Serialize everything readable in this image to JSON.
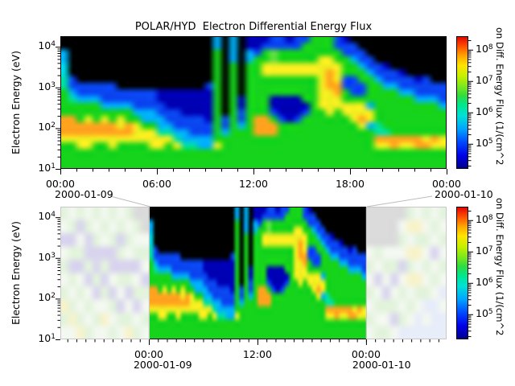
{
  "title": "POLAR/HYD  Electron Differential Energy Flux",
  "y_axis": {
    "label": "Electron Energy (eV)",
    "base": "10",
    "tick_exponents": [
      1,
      2,
      3,
      4
    ]
  },
  "colorbar": {
    "title_visible": "on Diff. Energy Flux (1/(cm^2",
    "base": "10",
    "tick_exponents": [
      5,
      6,
      7,
      8
    ]
  },
  "top_panel": {
    "x_ticks": [
      {
        "label": "00:00",
        "hour": 0
      },
      {
        "label": "06:00",
        "hour": 6
      },
      {
        "label": "12:00",
        "hour": 12
      },
      {
        "label": "18:00",
        "hour": 18
      },
      {
        "label": "00:00",
        "hour": 24
      }
    ],
    "dates": [
      {
        "label": "2000-01-09",
        "hour": 0
      },
      {
        "label": "2000-01-10",
        "hour": 24
      }
    ]
  },
  "bottom_panel": {
    "x_ticks": [
      {
        "label": "00:00",
        "hour": 0
      },
      {
        "label": "12:00",
        "hour": 12
      },
      {
        "label": "00:00",
        "hour": 24
      }
    ],
    "dates": [
      {
        "label": "2000-01-09",
        "hour": 0
      },
      {
        "label": "2000-01-10",
        "hour": 24
      }
    ],
    "range_hours": [
      -9.78,
      32.9
    ],
    "highlight_hours": [
      0,
      24
    ]
  },
  "chart_data": {
    "type": "heatmap",
    "title": "POLAR/HYD  Electron Differential Energy Flux",
    "ylabel": "Electron Energy (eV)",
    "y_scale": "log",
    "y_tick_labels": [
      "10^1",
      "10^2",
      "10^3",
      "10^4"
    ],
    "y_log_range": [
      1.0,
      4.26
    ],
    "colorbar_tick_labels": [
      "10^5",
      "10^6",
      "10^7",
      "10^8"
    ],
    "colorbar_log_range": [
      4.2,
      8.43
    ],
    "colorbar_label_visible": "on Diff. Energy Flux (1/(cm^2",
    "panels": [
      {
        "id": "top",
        "x_tick_labels": [
          "00:00",
          "06:00",
          "12:00",
          "18:00",
          "00:00"
        ],
        "x_tick_hours": [
          0,
          6,
          12,
          18,
          24
        ],
        "x_minor_step_hours": 1,
        "date_labels": [
          "2000-01-09",
          "2000-01-10"
        ],
        "range_hours": [
          0,
          24
        ]
      },
      {
        "id": "bottom-context",
        "x_tick_labels": [
          "00:00",
          "12:00",
          "00:00"
        ],
        "x_tick_hours": [
          0,
          12,
          24
        ],
        "x_minor_step_hours": 1,
        "date_labels": [
          "2000-01-09",
          "2000-01-10"
        ],
        "range_hours": [
          -9.78,
          32.9
        ],
        "highlight_hours": [
          0,
          24
        ],
        "note": "data outside 2000-01-09 shown washed out"
      }
    ],
    "rows": 20,
    "palette": {
      "K": "#000000",
      "N": "#0000b4",
      "B": "#0a46f0",
      "C": "#00b0f8",
      "c": "#00d8e8",
      "T": "#00e0a0",
      "G": "#16d31c",
      "g": "#66e046",
      "Y": "#f0ee20",
      "O": "#ffa41e",
      "w": "#f3f8f0",
      "m": "#e3f3dd",
      "l": "#d9d5ee",
      "y": "#f7f3cc",
      "a": "#dbdbdb",
      "q": "#e7edf9"
    },
    "colormap_stops": [
      [
        0.0,
        "#000088"
      ],
      [
        0.1,
        "#0000e8"
      ],
      [
        0.2,
        "#0048ff"
      ],
      [
        0.3,
        "#00a4ff"
      ],
      [
        0.4,
        "#00e0d8"
      ],
      [
        0.48,
        "#00e890"
      ],
      [
        0.55,
        "#30dc40"
      ],
      [
        0.62,
        "#7ce81c"
      ],
      [
        0.7,
        "#c8f000"
      ],
      [
        0.78,
        "#ffe400"
      ],
      [
        0.85,
        "#ffa800"
      ],
      [
        0.92,
        "#ff5400"
      ],
      [
        1.0,
        "#e00000"
      ]
    ],
    "top_grid_columns": [
      "KKCCccTTGGGGOOOYGGGG",
      "KKKKKKBBCTGGOOOYGGGG",
      "KKKKKKKBBCGGGOOYYGGG",
      "KKKKKKKBBCGGYOOYYGGG",
      "KKKKKKKBBCGGGOOYGGGG",
      "KKKKKKKBBBCGYOOYGGGG",
      "KKKKKKKBBBCGGOOYYGGG",
      "KKKKKKKKBBCGYYOYGGGG",
      "KKKKKKKKBBCGGOOYGGGG",
      "KKKKKKKKBBBCGYYYGGGG",
      "KKKKKKKKBBBCCGYYGGGG",
      "KKKKKKKKBBBCCGYYYGGG",
      "KKKKKKKKNNBBCCTYYGGG",
      "KKKKKKKKNNNBBCTYGGGG",
      "KKKKKKKKNNNBBBCTYGGG",
      "KKKKKKKKNNNNBBCCTGGG",
      "KKKKKKKKNNNNBBBCTGGG",
      "KKKKKKKKNNNNBBBCCGGG",
      "KKKKKKKBNNNNNBBCCGGG",
      "CCGGGGGGGGGGGGGGYGGG",
      "KKKKKKKKKKKKBBCGGGGG",
      "CCCCGGGGGGGGGGGGGGGG",
      "KKKKKKKKKNNBBCGGGGGG",
      "NNCCGGGGGGGGGGGGGGGG",
      "NNBGGGGGGGGGOOOGGGGG",
      "NBGGYYGGGGGGOOOGGGGG",
      "BBggYYGGGNNBGOOGGGGG",
      "BBGGYYGGGNNNBGGGGGGG",
      "NBGGYYGGGNNNNGGGGGGG",
      "BBGGYYGGGNNNBGGGGGGG",
      "BGGGYYGGGGNBGGGGGGGG",
      "GGGGYYGGGGGGGGGGGGGG",
      "GGGYYYYYYYYGGGGGGGGG",
      "GGGYYOOOYYYYGGGGGGGG",
      "BBGGYYYOOYYGGGGGGGGG",
      "NBBGGGBBGGYYGGGGGGGG",
      "KBBCGGBBBGYYYGGGGGGG",
      "KKBBCGGBBGYYOYGGGGGG",
      "KKKBBCGGGGCYYCGGGGGG",
      "KKKKBBCGGGGGGTTOYGGG",
      "KKKKNBBCGGGGGGTOYGGG",
      "KKKKKBBCGGGGGGGOOGGG",
      "KKKKKNBBCGGGGGGOYGGG",
      "KKKKKKBBCGGGGGGOYGGG",
      "KKKKKKNBBCGGGGGOOGGG",
      "KKKKKKBBBCGGGGGYOGGG",
      "KKKKKKKBBCGGGGGOYGGG",
      "KKKKKKKBBBCGGGGYYGGG"
    ],
    "washed_left_columns": [
      "mmwwllwwmmwwmmyymmww",
      "wwmmllmmllmmwwmmyyww",
      "mmllwwmmllwwmmwwmmyy",
      "wwmmllllmmllwwmmwwmm",
      "mmwwmmllllmmllwwmmww",
      "wwmmwwllmmllmmwwyyww",
      "mmwwmmllllwwllmmwwmm",
      "wwmmllmmllmmwwllmmww",
      "mmwwmmwwllmmllwwmmyy",
      "aammwwmmllwwmmllwwmm",
      "aaaawwmmwwllmmwwmmww"
    ],
    "washed_right_columns": [
      "aaaaaawwmmwwmmwwmmww",
      "aaaaaammwwllwwmmwwmm",
      "aaaaaawwmmwwllmmwwmm",
      "aaaaaawwmmllwwmmllww",
      "aawwmmwwllwwmmwwmmqq",
      "mmyywwyymmyywwmmwwqq",
      "wwyymmyywwyymmwwqqqq",
      "mmwwmmwwmmwwmmqqwwqq",
      "wwmmwwllwwmmwwqqqqqq",
      "mmwwmmwwmmwwqqwwqqqq"
    ]
  }
}
